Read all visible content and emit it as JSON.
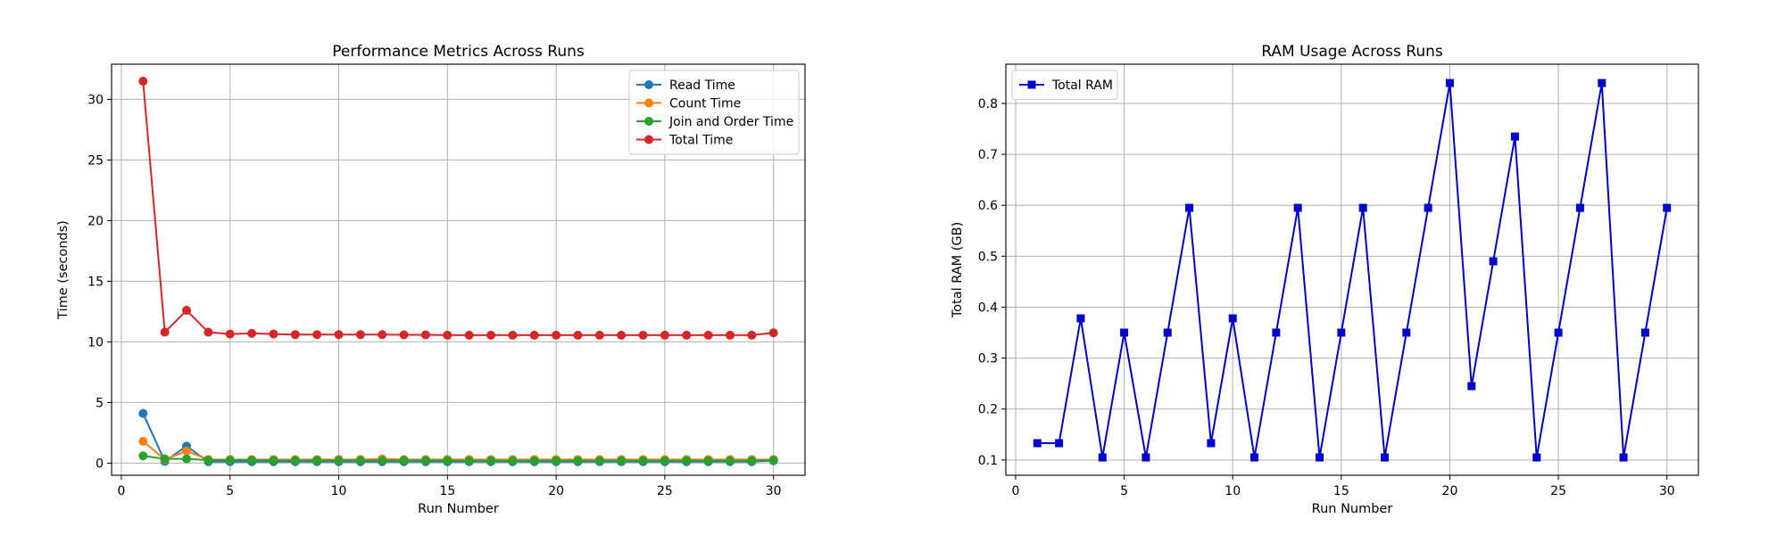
{
  "chart_data": [
    {
      "type": "line",
      "title": "Performance Metrics Across Runs",
      "xlabel": "Run Number",
      "ylabel": "Time (seconds)",
      "xlim": [
        -0.45,
        31.45
      ],
      "ylim": [
        -1.0,
        32.9
      ],
      "xticks": [
        0,
        5,
        10,
        15,
        20,
        25,
        30
      ],
      "yticks": [
        0,
        5,
        10,
        15,
        20,
        25,
        30
      ],
      "grid": true,
      "legend": "top-right",
      "x": [
        1,
        2,
        3,
        4,
        5,
        6,
        7,
        8,
        9,
        10,
        11,
        12,
        13,
        14,
        15,
        16,
        17,
        18,
        19,
        20,
        21,
        22,
        23,
        24,
        25,
        26,
        27,
        28,
        29,
        30
      ],
      "series": [
        {
          "name": "Read Time",
          "color": "#1f77b4",
          "marker": "circle",
          "values": [
            4.1,
            0.15,
            1.4,
            0.12,
            0.12,
            0.12,
            0.12,
            0.12,
            0.12,
            0.12,
            0.12,
            0.12,
            0.12,
            0.12,
            0.12,
            0.12,
            0.12,
            0.12,
            0.12,
            0.12,
            0.12,
            0.12,
            0.12,
            0.12,
            0.12,
            0.12,
            0.12,
            0.12,
            0.12,
            0.2
          ]
        },
        {
          "name": "Count Time",
          "color": "#ff7f0e",
          "marker": "circle",
          "values": [
            1.8,
            0.3,
            1.0,
            0.3,
            0.3,
            0.3,
            0.3,
            0.3,
            0.3,
            0.3,
            0.3,
            0.35,
            0.3,
            0.3,
            0.3,
            0.3,
            0.3,
            0.3,
            0.3,
            0.3,
            0.3,
            0.3,
            0.3,
            0.3,
            0.3,
            0.3,
            0.3,
            0.3,
            0.3,
            0.3
          ]
        },
        {
          "name": "Join and Order Time",
          "color": "#2ca02c",
          "marker": "circle",
          "values": [
            0.6,
            0.35,
            0.35,
            0.25,
            0.25,
            0.25,
            0.22,
            0.22,
            0.22,
            0.22,
            0.22,
            0.22,
            0.22,
            0.22,
            0.22,
            0.2,
            0.2,
            0.2,
            0.2,
            0.2,
            0.2,
            0.2,
            0.2,
            0.2,
            0.2,
            0.2,
            0.2,
            0.2,
            0.2,
            0.25
          ]
        },
        {
          "name": "Total Time",
          "color": "#d62728",
          "marker": "circle",
          "values": [
            31.5,
            10.8,
            12.6,
            10.8,
            10.65,
            10.7,
            10.65,
            10.6,
            10.6,
            10.6,
            10.6,
            10.6,
            10.58,
            10.58,
            10.55,
            10.55,
            10.55,
            10.55,
            10.55,
            10.55,
            10.55,
            10.55,
            10.55,
            10.55,
            10.55,
            10.55,
            10.55,
            10.55,
            10.55,
            10.75
          ]
        }
      ]
    },
    {
      "type": "line",
      "title": "RAM Usage Across Runs",
      "xlabel": "Run Number",
      "ylabel": "Total RAM (GB)",
      "xlim": [
        -0.45,
        31.45
      ],
      "ylim": [
        0.07,
        0.877
      ],
      "xticks": [
        0,
        5,
        10,
        15,
        20,
        25,
        30
      ],
      "yticks": [
        0.1,
        0.2,
        0.3,
        0.4,
        0.5,
        0.6,
        0.7,
        0.8
      ],
      "grid": true,
      "legend": "top-left",
      "x": [
        1,
        2,
        3,
        4,
        5,
        6,
        7,
        8,
        9,
        10,
        11,
        12,
        13,
        14,
        15,
        16,
        17,
        18,
        19,
        20,
        21,
        22,
        23,
        24,
        25,
        26,
        27,
        28,
        29,
        30
      ],
      "series": [
        {
          "name": "Total RAM",
          "color": "#0000cd",
          "marker": "square",
          "values": [
            0.133,
            0.133,
            0.378,
            0.105,
            0.35,
            0.105,
            0.35,
            0.595,
            0.133,
            0.378,
            0.105,
            0.35,
            0.595,
            0.105,
            0.35,
            0.595,
            0.105,
            0.35,
            0.595,
            0.84,
            0.245,
            0.49,
            0.735,
            0.105,
            0.35,
            0.595,
            0.84,
            0.105,
            0.35,
            0.595
          ]
        }
      ]
    }
  ]
}
